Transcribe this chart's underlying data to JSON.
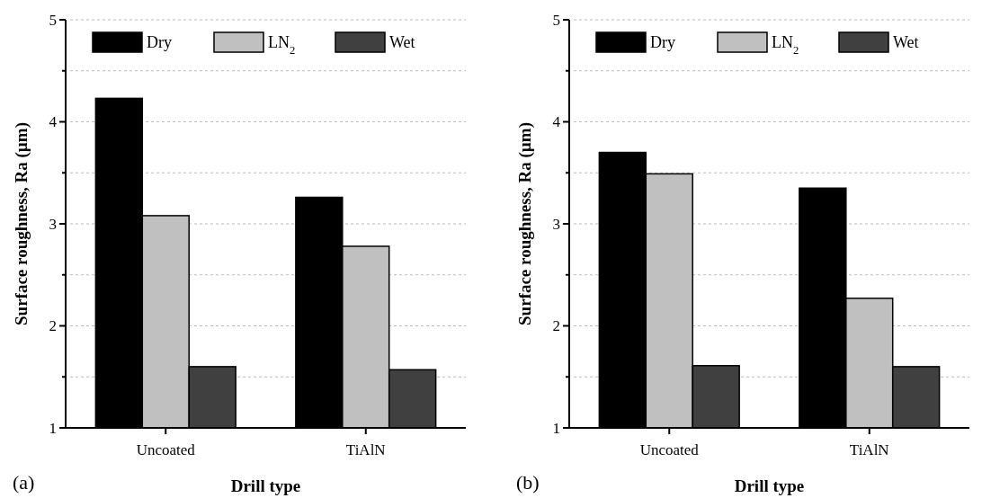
{
  "chart_data": [
    {
      "type": "bar",
      "xlabel": "Drill type",
      "ylabel": "Surface roughness, Ra (µm)",
      "categories": [
        "Uncoated",
        "TiAlN"
      ],
      "series": [
        {
          "name": "Dry",
          "color": "#000000",
          "values": [
            4.23,
            3.26
          ]
        },
        {
          "name": "LN$_{2}$",
          "color": "#c0c0c0",
          "values": [
            3.08,
            2.78
          ]
        },
        {
          "name": "Wet",
          "color": "#404040",
          "values": [
            1.6,
            1.57
          ]
        }
      ],
      "ylim": [
        1,
        5
      ],
      "yticks": [
        1,
        {
          "value": 1.5,
          "label": null
        },
        2,
        {
          "value": 2.5,
          "label": null
        },
        3,
        {
          "value": 3.5,
          "label": null
        },
        4,
        {
          "value": 4.5,
          "label": null
        },
        5
      ],
      "grid": "y",
      "legend": "top",
      "annotations": [
        "(a)"
      ]
    },
    {
      "type": "bar",
      "xlabel": "Drill type",
      "ylabel": "Surface roughness, Ra (µm)",
      "categories": [
        "Uncoated",
        "TiAlN"
      ],
      "series": [
        {
          "name": "Dry",
          "color": "#000000",
          "values": [
            3.7,
            3.35
          ]
        },
        {
          "name": "LN$_{2}$",
          "color": "#c0c0c0",
          "values": [
            3.49,
            2.27
          ]
        },
        {
          "name": "Wet",
          "color": "#404040",
          "values": [
            1.61,
            1.6
          ]
        }
      ],
      "ylim": [
        1,
        5
      ],
      "yticks": [
        1,
        {
          "value": 1.5,
          "label": null
        },
        2,
        {
          "value": 2.5,
          "label": null
        },
        3,
        {
          "value": 3.5,
          "label": null
        },
        4,
        {
          "value": 4.5,
          "label": null
        },
        5
      ],
      "grid": "y",
      "legend": "top",
      "annotations": [
        "(b)"
      ]
    }
  ]
}
